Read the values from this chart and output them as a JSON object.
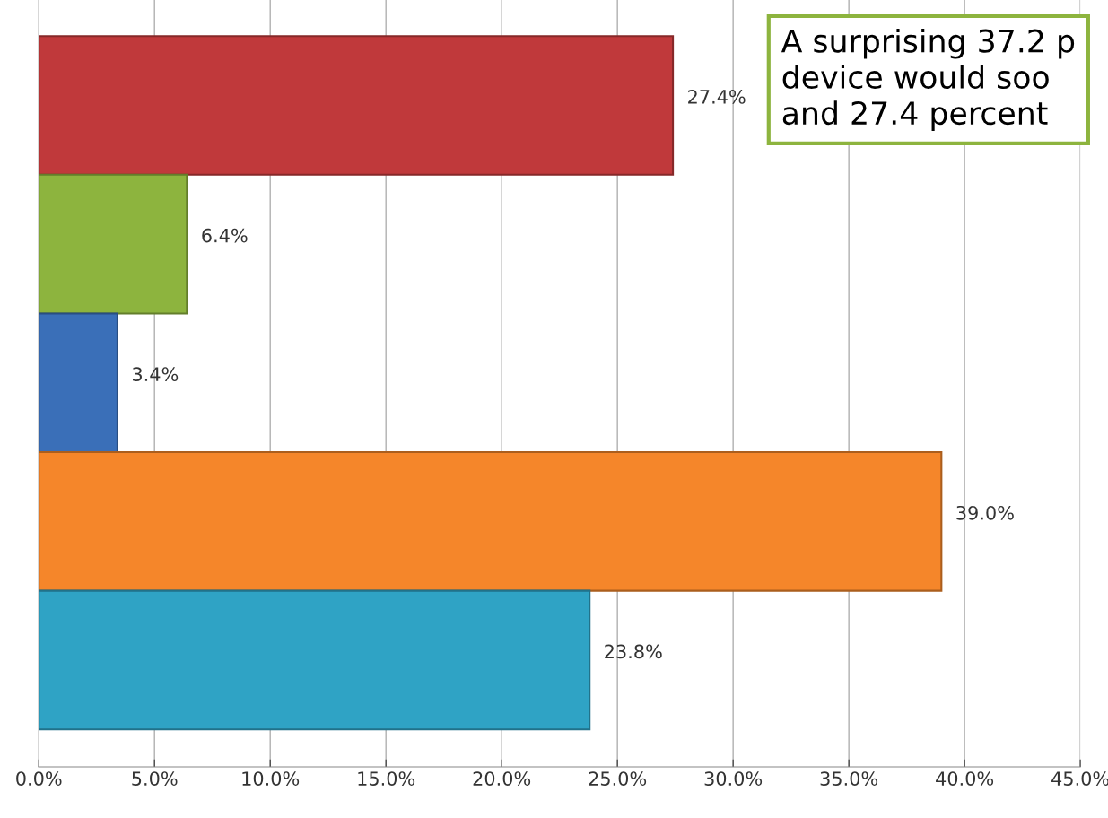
{
  "chart_data": {
    "type": "bar",
    "orientation": "horizontal",
    "categories": [
      null,
      null,
      null,
      null,
      null
    ],
    "values": [
      27.4,
      6.4,
      3.4,
      39.0,
      23.8
    ],
    "colors": [
      "#c0393b",
      "#8db43e",
      "#3a6fb8",
      "#f5862a",
      "#2fa3c5"
    ],
    "value_labels": [
      "27.4%",
      "6.4%",
      "3.4%",
      "39.0%",
      "23.8%"
    ],
    "xlim": [
      0,
      45
    ],
    "xticks": [
      {
        "value": 0,
        "label": "0.0%"
      },
      {
        "value": 5,
        "label": "5.0%"
      },
      {
        "value": 10,
        "label": "10.0%"
      },
      {
        "value": 15,
        "label": "15.0%"
      },
      {
        "value": 20,
        "label": "20.0%"
      },
      {
        "value": 25,
        "label": "25.0%"
      },
      {
        "value": 30,
        "label": "30.0%"
      },
      {
        "value": 35,
        "label": "35.0%"
      },
      {
        "value": 40,
        "label": "40.0%"
      },
      {
        "value": 45,
        "label": "45.0%"
      }
    ],
    "grid": "x",
    "annotations": [
      "A surprising 37.2 p\ndevice would soo\nand 27.4 percent"
    ]
  }
}
